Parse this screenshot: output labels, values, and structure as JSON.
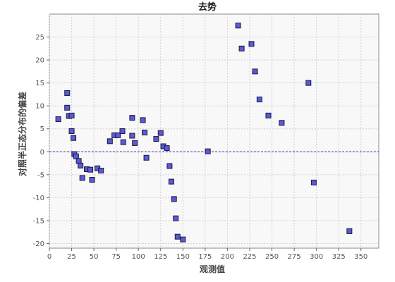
{
  "chart_data": {
    "type": "scatter",
    "title": "去势",
    "xlabel": "观测值",
    "ylabel": "对照半正态分布的偏差",
    "xlim": [
      0,
      370
    ],
    "ylim": [
      -21,
      30
    ],
    "xticks": [
      0,
      25,
      50,
      75,
      100,
      125,
      150,
      175,
      200,
      225,
      250,
      275,
      300,
      325,
      350
    ],
    "yticks": [
      -20,
      -15,
      -10,
      -5,
      0,
      5,
      10,
      15,
      20,
      25
    ],
    "reference_line": 0,
    "grid": true,
    "colors": {
      "marker_fill": "#5b59d8",
      "marker_edge": "#1a1a3a",
      "reference_line": "#5b3fb0",
      "plot_bg": "#f8f8f8"
    },
    "points": [
      [
        10,
        7.1
      ],
      [
        20,
        12.8
      ],
      [
        20,
        9.6
      ],
      [
        22,
        7.8
      ],
      [
        25,
        7.9
      ],
      [
        25,
        4.5
      ],
      [
        27,
        3.0
      ],
      [
        28,
        -0.5
      ],
      [
        30,
        -1.0
      ],
      [
        33,
        -2.0
      ],
      [
        35,
        -3.0
      ],
      [
        37,
        -5.7
      ],
      [
        42,
        -3.8
      ],
      [
        46,
        -3.9
      ],
      [
        48,
        -6.1
      ],
      [
        54,
        -3.6
      ],
      [
        58,
        -4.1
      ],
      [
        68,
        2.3
      ],
      [
        73,
        3.6
      ],
      [
        77,
        3.6
      ],
      [
        82,
        4.5
      ],
      [
        83,
        2.1
      ],
      [
        93,
        7.4
      ],
      [
        93,
        3.5
      ],
      [
        96,
        1.9
      ],
      [
        105,
        6.9
      ],
      [
        107,
        4.2
      ],
      [
        109,
        -1.3
      ],
      [
        120,
        2.8
      ],
      [
        125,
        4.1
      ],
      [
        128,
        1.2
      ],
      [
        132,
        0.8
      ],
      [
        135,
        -3.1
      ],
      [
        137,
        -6.5
      ],
      [
        140,
        -10.3
      ],
      [
        142,
        -14.5
      ],
      [
        144,
        -18.5
      ],
      [
        150,
        -19.1
      ],
      [
        178,
        0.1
      ],
      [
        212,
        27.5
      ],
      [
        216,
        22.5
      ],
      [
        227,
        23.5
      ],
      [
        231,
        17.5
      ],
      [
        236,
        11.4
      ],
      [
        246,
        7.9
      ],
      [
        261,
        6.3
      ],
      [
        291,
        15.0
      ],
      [
        297,
        -6.7
      ],
      [
        337,
        -17.3
      ]
    ]
  }
}
